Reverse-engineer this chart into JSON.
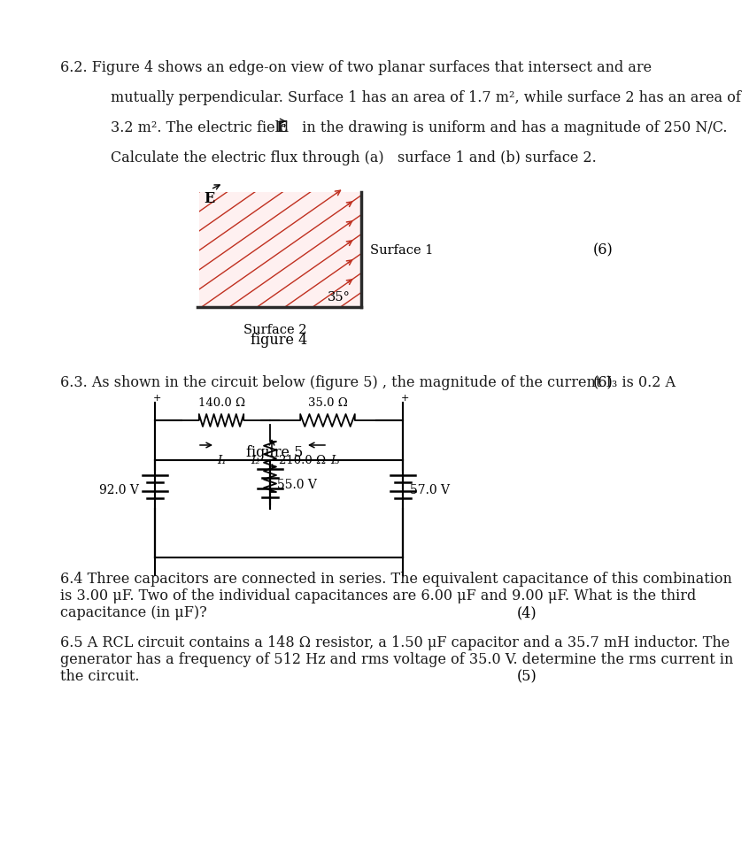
{
  "page_bg": "#ffffff",
  "text_color": "#1a1a1a",
  "line1": "6.2. Figure 4 shows an edge-on view of two planar surfaces that intersect and are",
  "line2": "mutually perpendicular. Surface 1 has an area of 1.7 m², while surface 2 has an area of",
  "line3_a": "3.2 m². The electric field  ",
  "line3_E": "E",
  "line3_b": "  in the drawing is uniform and has a magnitude of 250 N/C.",
  "line4": "Calculate the electric flux through (a)   surface 1 and (b) surface 2.",
  "fig4_caption": "figure 4",
  "fig4_mark": "(6)",
  "surface1_label": "Surface 1",
  "surface2_label": "Surface 2",
  "angle_label": "35°",
  "E_label": "E",
  "line6_3": "6.3. As shown in the circuit below (figure 5) , the magnitude of the current I₃ is 0.2 A",
  "fig5_caption": "figure 5",
  "fig5_mark": "(6)",
  "R1_label": "140.0 Ω",
  "R2_label": "35.0 Ω",
  "R3_label": "210.0 Ω",
  "V1_label": "92.0 V",
  "V2_label": "55.0 V",
  "V3_label": "57.0 V",
  "I1_label": "I₁",
  "I2_label": "I₂",
  "I3_label": "I₃",
  "line6_4a": "6.4 Three capacitors are connected in series. The equivalent capacitance of this combination",
  "line6_4b": "is 3.00 μF. Two of the individual capacitances are 6.00 μF and 9.00 μF. What is the third",
  "line6_4c": "capacitance (in μF)?",
  "mark6_4": "(4)",
  "line6_5a": "6.5 A RCL circuit contains a 148 Ω resistor, a 1.50 μF capacitor and a 35.7 mH inductor. The",
  "line6_5b": "generator has a frequency of 512 Hz and rms voltage of 35.0 V. determine the rms current in",
  "line6_5c": "the circuit.",
  "mark6_5": "(5)"
}
